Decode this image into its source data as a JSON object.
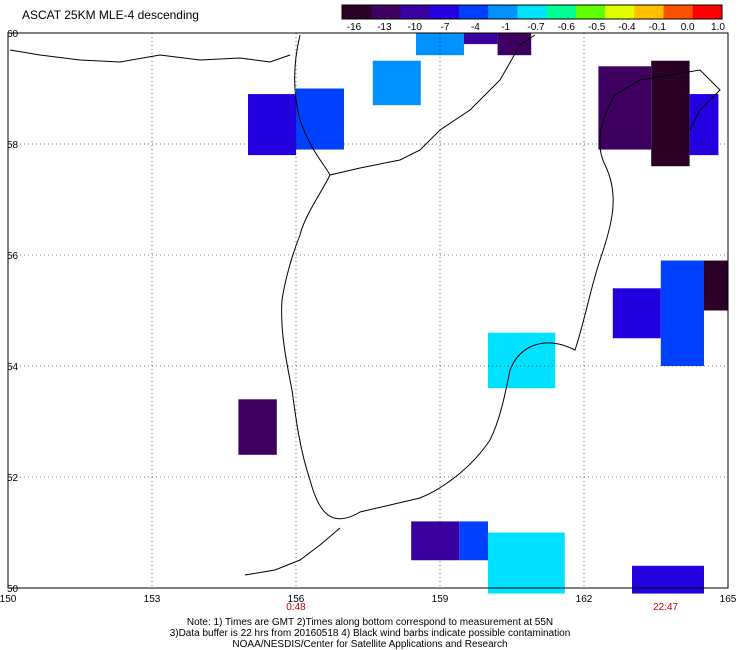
{
  "title": "ASCAT 25KM MLE-4 descending",
  "colorbar": {
    "labels": [
      "-16",
      "-13",
      "-10",
      "-7",
      "-4",
      "-1",
      "-0.7",
      "-0.6",
      "-0.5",
      "-0.4",
      "-0.1",
      "0.0",
      "1.0"
    ],
    "colors": [
      "#2a0026",
      "#3d0060",
      "#3a00a0",
      "#2200e0",
      "#0040ff",
      "#0090ff",
      "#00e0ff",
      "#00ff90",
      "#60ff00",
      "#e0ff00",
      "#ffc000",
      "#ff5000",
      "#ff0000"
    ]
  },
  "axes": {
    "lon_labels": [
      "150",
      "153",
      "156",
      "159",
      "162",
      "165"
    ],
    "lat_labels": [
      "60",
      "58",
      "56",
      "54",
      "52",
      "50"
    ],
    "lon_ticks": [
      150,
      153,
      156,
      159,
      162,
      165
    ],
    "lat_ticks": [
      60,
      58,
      56,
      54,
      52,
      50
    ]
  },
  "time_labels": [
    {
      "text": "0:48",
      "lon": 156
    },
    {
      "text": "22:47",
      "lon": 163.7
    }
  ],
  "notes": {
    "line1": "Note: 1) Times are GMT 2)Times along bottom correspond to measurement at 55N",
    "line2": "3)Data buffer is 22 hrs from 20160518 4) Black wind barbs indicate possible contamination",
    "line3": "NOAA/NESDIS/Center for Satellite Applications and Research"
  },
  "swaths": [
    {
      "lon": [
        158.5,
        159.5
      ],
      "lat": [
        59.6,
        60.0
      ],
      "color": "#0090ff"
    },
    {
      "lon": [
        159.5,
        160.2
      ],
      "lat": [
        59.8,
        60.0
      ],
      "color": "#3a00a0"
    },
    {
      "lon": [
        160.2,
        160.9
      ],
      "lat": [
        59.6,
        60.0
      ],
      "color": "#3d0060"
    },
    {
      "lon": [
        157.6,
        158.6
      ],
      "lat": [
        58.7,
        59.5
      ],
      "color": "#0090ff"
    },
    {
      "lon": [
        155.0,
        156.0
      ],
      "lat": [
        57.8,
        58.9
      ],
      "color": "#2200e0"
    },
    {
      "lon": [
        156.0,
        157.0
      ],
      "lat": [
        57.9,
        59.0
      ],
      "color": "#0040ff"
    },
    {
      "lon": [
        162.3,
        163.4
      ],
      "lat": [
        57.9,
        59.4
      ],
      "color": "#3d0060"
    },
    {
      "lon": [
        163.4,
        164.2
      ],
      "lat": [
        57.6,
        59.5
      ],
      "color": "#2a0026"
    },
    {
      "lon": [
        164.2,
        164.8
      ],
      "lat": [
        57.8,
        58.9
      ],
      "color": "#2200e0"
    },
    {
      "lon": [
        162.6,
        163.6
      ],
      "lat": [
        54.5,
        55.4
      ],
      "color": "#2200e0"
    },
    {
      "lon": [
        163.6,
        164.5
      ],
      "lat": [
        54.0,
        55.9
      ],
      "color": "#0040ff"
    },
    {
      "lon": [
        164.5,
        165.0
      ],
      "lat": [
        55.0,
        55.9
      ],
      "color": "#2a0026"
    },
    {
      "lon": [
        160.0,
        161.4
      ],
      "lat": [
        53.6,
        54.6
      ],
      "color": "#00e0ff"
    },
    {
      "lon": [
        154.8,
        155.6
      ],
      "lat": [
        52.4,
        53.4
      ],
      "color": "#3d0060"
    },
    {
      "lon": [
        158.4,
        159.4
      ],
      "lat": [
        50.5,
        51.2
      ],
      "color": "#3a00a0"
    },
    {
      "lon": [
        159.4,
        160.0
      ],
      "lat": [
        50.5,
        51.2
      ],
      "color": "#0040ff"
    },
    {
      "lon": [
        160.0,
        161.6
      ],
      "lat": [
        49.9,
        51.0
      ],
      "color": "#00e0ff"
    },
    {
      "lon": [
        163.0,
        164.5
      ],
      "lat": [
        49.9,
        50.4
      ],
      "color": "#2200e0"
    }
  ]
}
